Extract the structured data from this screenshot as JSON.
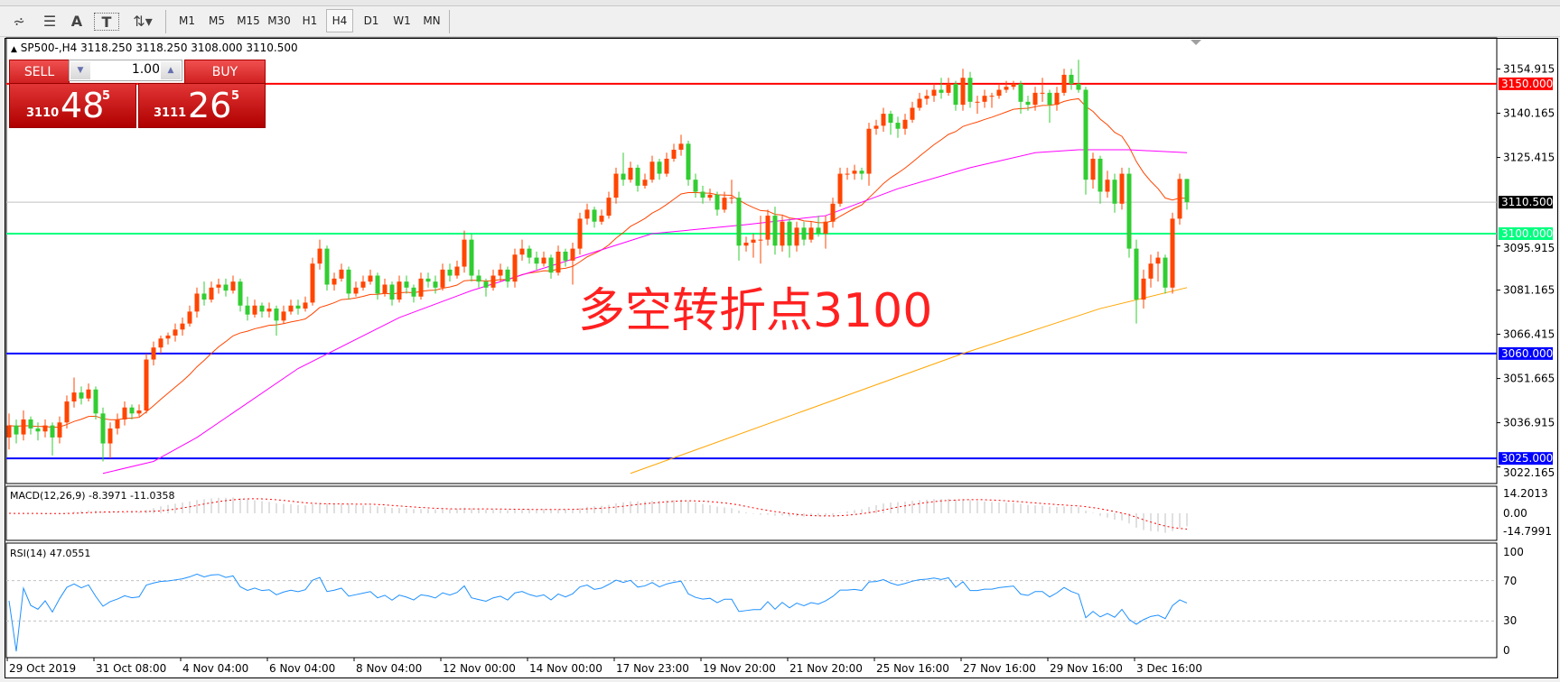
{
  "toolbar": {
    "tools": [
      {
        "icon": "fibonacci-fan-icon"
      },
      {
        "icon": "fibonacci-lines-icon"
      },
      {
        "icon": "text-icon",
        "label": "A"
      },
      {
        "icon": "text-label-icon",
        "label": "T"
      },
      {
        "icon": "arrows-dropdown-icon"
      }
    ],
    "timeframes": [
      "M1",
      "M5",
      "M15",
      "M30",
      "H1",
      "H4",
      "D1",
      "W1",
      "MN"
    ],
    "active_timeframe": "H4"
  },
  "chart": {
    "title": "SP500-,H4  3118.250 3118.250 3108.000 3110.500",
    "trade_panel": {
      "sell_label": "SELL",
      "buy_label": "BUY",
      "lot": "1.00",
      "sell_price": {
        "prefix": "3110",
        "big": "48",
        "sup": "5"
      },
      "buy_price": {
        "prefix": "3111",
        "big": "26",
        "sup": "5"
      }
    },
    "annotation": "多空转折点3100",
    "macd_label": "MACD(12,26,9) -8.3971 -11.0358",
    "rsi_label": "RSI(14) 47.0551"
  },
  "colors": {
    "bull": "#ff4500",
    "bear": "#32cd32",
    "ma_fast": "#ff4500",
    "ma_mid": "#ff00ff",
    "ma_slow": "#ffa500",
    "rsi": "#1e90ff",
    "macd_signal": "#ff0000",
    "macd_hist": "#c0c0c0",
    "annotation": "#ff2020"
  },
  "chart_data": {
    "type": "candlestick",
    "symbol": "SP500-",
    "timeframe": "H4",
    "ylim": [
      3018,
      3163
    ],
    "y_ticks": [
      "3154.915",
      "3140.165",
      "3125.415",
      "3095.915",
      "3081.165",
      "3066.415",
      "3051.665",
      "3036.915",
      "3022.165"
    ],
    "x_ticks": [
      {
        "bar": 0,
        "label": "29 Oct 2019"
      },
      {
        "bar": 12,
        "label": "31 Oct 08:00"
      },
      {
        "bar": 24,
        "label": "4 Nov 04:00"
      },
      {
        "bar": 36,
        "label": "6 Nov 04:00"
      },
      {
        "bar": 48,
        "label": "8 Nov 04:00"
      },
      {
        "bar": 60,
        "label": "12 Nov 00:00"
      },
      {
        "bar": 72,
        "label": "14 Nov 00:00"
      },
      {
        "bar": 84,
        "label": "17 Nov 23:00"
      },
      {
        "bar": 96,
        "label": "19 Nov 20:00"
      },
      {
        "bar": 108,
        "label": "21 Nov 20:00"
      },
      {
        "bar": 120,
        "label": "25 Nov 16:00"
      },
      {
        "bar": 132,
        "label": "27 Nov 16:00"
      },
      {
        "bar": 144,
        "label": "29 Nov 16:00"
      },
      {
        "bar": 156,
        "label": "3 Dec 16:00"
      }
    ],
    "hlines": [
      {
        "value": 3150,
        "label": "3150.000",
        "color": "#ff0000"
      },
      {
        "value": 3100,
        "label": "3100.000",
        "color": "#00ff7f"
      },
      {
        "value": 3060,
        "label": "3060.000",
        "color": "#0000ff"
      },
      {
        "value": 3025,
        "label": "3025.000",
        "color": "#0000ff"
      }
    ],
    "bid_line": {
      "value": 3110.5,
      "label": "3110.500"
    },
    "ma_mid": [
      [
        13,
        3020
      ],
      [
        20,
        3024
      ],
      [
        26,
        3032
      ],
      [
        40,
        3055
      ],
      [
        54,
        3072
      ],
      [
        64,
        3081
      ],
      [
        76,
        3090
      ],
      [
        89,
        3100
      ],
      [
        102,
        3103
      ],
      [
        113,
        3106
      ],
      [
        123,
        3115
      ],
      [
        133,
        3122
      ],
      [
        142,
        3127
      ],
      [
        148,
        3128
      ],
      [
        155,
        3128
      ],
      [
        163,
        3127
      ]
    ],
    "ma_slow": [
      [
        86,
        3020
      ],
      [
        109,
        3040
      ],
      [
        132,
        3060
      ],
      [
        151,
        3075
      ],
      [
        163,
        3082
      ]
    ],
    "macd_axis": [
      "14.2013",
      "0.00",
      "-14.7991"
    ],
    "rsi_axis": [
      "100",
      "70",
      "30",
      "0"
    ],
    "bars": [
      [
        3032,
        3040,
        3028,
        3036
      ],
      [
        3036,
        3038,
        3030,
        3033
      ],
      [
        3033,
        3041,
        3031,
        3038
      ],
      [
        3038,
        3039,
        3033,
        3035
      ],
      [
        3035,
        3037,
        3031,
        3034
      ],
      [
        3034,
        3038,
        3032,
        3036
      ],
      [
        3036,
        3037,
        3026,
        3032
      ],
      [
        3032,
        3039,
        3030,
        3037
      ],
      [
        3037,
        3046,
        3035,
        3044
      ],
      [
        3044,
        3052,
        3042,
        3047
      ],
      [
        3047,
        3049,
        3043,
        3045
      ],
      [
        3045,
        3050,
        3044,
        3048
      ],
      [
        3048,
        3049,
        3038,
        3040
      ],
      [
        3040,
        3042,
        3024,
        3030
      ],
      [
        3030,
        3037,
        3025,
        3035
      ],
      [
        3035,
        3040,
        3033,
        3038
      ],
      [
        3038,
        3044,
        3036,
        3042
      ],
      [
        3042,
        3043,
        3038,
        3040
      ],
      [
        3040,
        3043,
        3039,
        3041
      ],
      [
        3041,
        3060,
        3040,
        3058
      ],
      [
        3058,
        3064,
        3056,
        3062
      ],
      [
        3062,
        3066,
        3060,
        3065
      ],
      [
        3065,
        3067,
        3063,
        3066
      ],
      [
        3066,
        3070,
        3064,
        3068
      ],
      [
        3068,
        3072,
        3066,
        3070
      ],
      [
        3070,
        3076,
        3069,
        3074
      ],
      [
        3074,
        3082,
        3072,
        3080
      ],
      [
        3080,
        3084,
        3076,
        3078
      ],
      [
        3078,
        3084,
        3077,
        3082
      ],
      [
        3082,
        3085,
        3080,
        3083
      ],
      [
        3083,
        3085,
        3079,
        3081
      ],
      [
        3081,
        3086,
        3080,
        3084
      ],
      [
        3084,
        3085,
        3074,
        3076
      ],
      [
        3076,
        3079,
        3071,
        3073
      ],
      [
        3073,
        3078,
        3072,
        3076
      ],
      [
        3076,
        3077,
        3072,
        3074
      ],
      [
        3074,
        3077,
        3072,
        3075
      ],
      [
        3075,
        3076,
        3066,
        3071
      ],
      [
        3071,
        3076,
        3070,
        3074
      ],
      [
        3074,
        3078,
        3073,
        3076
      ],
      [
        3076,
        3078,
        3073,
        3075
      ],
      [
        3075,
        3079,
        3074,
        3077
      ],
      [
        3077,
        3092,
        3076,
        3090
      ],
      [
        3090,
        3098,
        3088,
        3095
      ],
      [
        3095,
        3096,
        3081,
        3083
      ],
      [
        3083,
        3087,
        3081,
        3085
      ],
      [
        3085,
        3090,
        3084,
        3088
      ],
      [
        3088,
        3089,
        3078,
        3080
      ],
      [
        3080,
        3084,
        3079,
        3082
      ],
      [
        3082,
        3086,
        3081,
        3084
      ],
      [
        3084,
        3088,
        3083,
        3086
      ],
      [
        3086,
        3087,
        3078,
        3080
      ],
      [
        3080,
        3085,
        3079,
        3083
      ],
      [
        3083,
        3084,
        3076,
        3078
      ],
      [
        3078,
        3086,
        3077,
        3084
      ],
      [
        3084,
        3086,
        3080,
        3082
      ],
      [
        3082,
        3083,
        3077,
        3079
      ],
      [
        3079,
        3087,
        3078,
        3085
      ],
      [
        3085,
        3087,
        3082,
        3084
      ],
      [
        3084,
        3086,
        3080,
        3082
      ],
      [
        3082,
        3090,
        3081,
        3088
      ],
      [
        3088,
        3090,
        3084,
        3086
      ],
      [
        3086,
        3091,
        3085,
        3089
      ],
      [
        3089,
        3101,
        3087,
        3098
      ],
      [
        3098,
        3100,
        3084,
        3086
      ],
      [
        3086,
        3088,
        3082,
        3084
      ],
      [
        3084,
        3085,
        3079,
        3082
      ],
      [
        3082,
        3088,
        3081,
        3086
      ],
      [
        3086,
        3090,
        3084,
        3088
      ],
      [
        3088,
        3089,
        3082,
        3084
      ],
      [
        3084,
        3095,
        3082,
        3093
      ],
      [
        3093,
        3098,
        3091,
        3095
      ],
      [
        3095,
        3096,
        3090,
        3092
      ],
      [
        3092,
        3094,
        3088,
        3090
      ],
      [
        3090,
        3094,
        3089,
        3092
      ],
      [
        3092,
        3093,
        3085,
        3087
      ],
      [
        3087,
        3096,
        3086,
        3094
      ],
      [
        3094,
        3095,
        3089,
        3091
      ],
      [
        3091,
        3097,
        3083,
        3095
      ],
      [
        3095,
        3107,
        3093,
        3105
      ],
      [
        3105,
        3110,
        3103,
        3108
      ],
      [
        3108,
        3109,
        3102,
        3104
      ],
      [
        3104,
        3108,
        3103,
        3106
      ],
      [
        3106,
        3114,
        3105,
        3112
      ],
      [
        3112,
        3122,
        3110,
        3120
      ],
      [
        3120,
        3127,
        3116,
        3118
      ],
      [
        3118,
        3124,
        3117,
        3122
      ],
      [
        3122,
        3123,
        3114,
        3116
      ],
      [
        3116,
        3120,
        3115,
        3118
      ],
      [
        3118,
        3126,
        3117,
        3124
      ],
      [
        3124,
        3125,
        3118,
        3120
      ],
      [
        3120,
        3127,
        3119,
        3125
      ],
      [
        3125,
        3130,
        3124,
        3128
      ],
      [
        3128,
        3133,
        3126,
        3130
      ],
      [
        3130,
        3131,
        3116,
        3118
      ],
      [
        3118,
        3120,
        3112,
        3114
      ],
      [
        3114,
        3116,
        3110,
        3112
      ],
      [
        3112,
        3115,
        3111,
        3113
      ],
      [
        3113,
        3114,
        3106,
        3108
      ],
      [
        3108,
        3114,
        3107,
        3112
      ],
      [
        3112,
        3118,
        3110,
        3112
      ],
      [
        3112,
        3114,
        3091,
        3096
      ],
      [
        3096,
        3099,
        3094,
        3097
      ],
      [
        3097,
        3100,
        3092,
        3098
      ],
      [
        3098,
        3106,
        3090,
        3098
      ],
      [
        3098,
        3108,
        3096,
        3106
      ],
      [
        3106,
        3109,
        3093,
        3096
      ],
      [
        3096,
        3106,
        3094,
        3104
      ],
      [
        3104,
        3105,
        3092,
        3096
      ],
      [
        3096,
        3104,
        3094,
        3102
      ],
      [
        3102,
        3104,
        3096,
        3098
      ],
      [
        3098,
        3104,
        3097,
        3102
      ],
      [
        3102,
        3106,
        3099,
        3100
      ],
      [
        3100,
        3106,
        3095,
        3104
      ],
      [
        3104,
        3112,
        3102,
        3110
      ],
      [
        3110,
        3122,
        3109,
        3120
      ],
      [
        3120,
        3122,
        3118,
        3120
      ],
      [
        3120,
        3123,
        3118,
        3121
      ],
      [
        3121,
        3122,
        3118,
        3120
      ],
      [
        3120,
        3137,
        3116,
        3135
      ],
      [
        3135,
        3138,
        3133,
        3136
      ],
      [
        3136,
        3142,
        3134,
        3140
      ],
      [
        3140,
        3141,
        3133,
        3137
      ],
      [
        3137,
        3139,
        3132,
        3135
      ],
      [
        3135,
        3140,
        3133,
        3138
      ],
      [
        3138,
        3144,
        3137,
        3142
      ],
      [
        3142,
        3147,
        3141,
        3145
      ],
      [
        3145,
        3148,
        3143,
        3146
      ],
      [
        3146,
        3150,
        3144,
        3148
      ],
      [
        3148,
        3152,
        3145,
        3147
      ],
      [
        3147,
        3152,
        3146,
        3150
      ],
      [
        3150,
        3151,
        3141,
        3143
      ],
      [
        3143,
        3155,
        3141,
        3152
      ],
      [
        3152,
        3154,
        3142,
        3144
      ],
      [
        3144,
        3146,
        3140,
        3144
      ],
      [
        3144,
        3148,
        3142,
        3146
      ],
      [
        3146,
        3147,
        3142,
        3146
      ],
      [
        3146,
        3150,
        3145,
        3148
      ],
      [
        3148,
        3151,
        3147,
        3149
      ],
      [
        3149,
        3151,
        3148,
        3150
      ],
      [
        3150,
        3151,
        3140,
        3144
      ],
      [
        3144,
        3146,
        3141,
        3143
      ],
      [
        3143,
        3149,
        3141,
        3147
      ],
      [
        3147,
        3152,
        3144,
        3147
      ],
      [
        3147,
        3148,
        3137,
        3143
      ],
      [
        3143,
        3149,
        3141,
        3147
      ],
      [
        3147,
        3155,
        3146,
        3153
      ],
      [
        3153,
        3155,
        3148,
        3150
      ],
      [
        3150,
        3158,
        3147,
        3148
      ],
      [
        3148,
        3149,
        3113,
        3118
      ],
      [
        3118,
        3127,
        3115,
        3125
      ],
      [
        3125,
        3126,
        3110,
        3114
      ],
      [
        3114,
        3121,
        3112,
        3118
      ],
      [
        3118,
        3120,
        3107,
        3110
      ],
      [
        3110,
        3122,
        3108,
        3120
      ],
      [
        3120,
        3122,
        3092,
        3095
      ],
      [
        3095,
        3098,
        3070,
        3078
      ],
      [
        3078,
        3088,
        3075,
        3085
      ],
      [
        3085,
        3093,
        3082,
        3090
      ],
      [
        3090,
        3094,
        3084,
        3092
      ],
      [
        3092,
        3093,
        3080,
        3082
      ],
      [
        3082,
        3107,
        3080,
        3105
      ],
      [
        3105,
        3120,
        3103,
        3118.25
      ],
      [
        3118.25,
        3118.25,
        3108,
        3110.5
      ]
    ]
  }
}
